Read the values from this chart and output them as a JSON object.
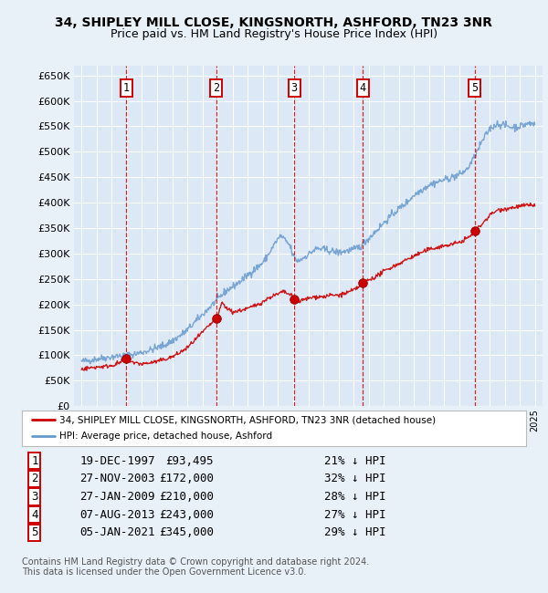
{
  "title1": "34, SHIPLEY MILL CLOSE, KINGSNORTH, ASHFORD, TN23 3NR",
  "title2": "Price paid vs. HM Land Registry's House Price Index (HPI)",
  "ylim": [
    0,
    670000
  ],
  "yticks": [
    0,
    50000,
    100000,
    150000,
    200000,
    250000,
    300000,
    350000,
    400000,
    450000,
    500000,
    550000,
    600000,
    650000
  ],
  "ytick_labels": [
    "£0",
    "£50K",
    "£100K",
    "£150K",
    "£200K",
    "£250K",
    "£300K",
    "£350K",
    "£400K",
    "£450K",
    "£500K",
    "£550K",
    "£600K",
    "£650K"
  ],
  "xlim_start": 1994.5,
  "xlim_end": 2025.5,
  "transactions": [
    {
      "num": 1,
      "date": "19-DEC-1997",
      "year": 1997.97,
      "price": 93495,
      "pct": "21%"
    },
    {
      "num": 2,
      "date": "27-NOV-2003",
      "year": 2003.9,
      "price": 172000,
      "pct": "32%"
    },
    {
      "num": 3,
      "date": "27-JAN-2009",
      "year": 2009.07,
      "price": 210000,
      "pct": "28%"
    },
    {
      "num": 4,
      "date": "07-AUG-2013",
      "year": 2013.6,
      "price": 243000,
      "pct": "27%"
    },
    {
      "num": 5,
      "date": "05-JAN-2021",
      "year": 2021.02,
      "price": 345000,
      "pct": "29%"
    }
  ],
  "legend_label_red": "34, SHIPLEY MILL CLOSE, KINGSNORTH, ASHFORD, TN23 3NR (detached house)",
  "legend_label_blue": "HPI: Average price, detached house, Ashford",
  "footer1": "Contains HM Land Registry data © Crown copyright and database right 2024.",
  "footer2": "This data is licensed under the Open Government Licence v3.0.",
  "background_color": "#e8f0f8",
  "plot_bg_color": "#dce8f5",
  "red_color": "#cc0000",
  "blue_color": "#6699cc",
  "grid_color": "#ffffff",
  "dashed_color": "#cc0000",
  "hpi_anchors": [
    [
      1995.0,
      88000
    ],
    [
      1995.5,
      90000
    ],
    [
      1996.0,
      93000
    ],
    [
      1996.5,
      95000
    ],
    [
      1997.0,
      97000
    ],
    [
      1997.5,
      99000
    ],
    [
      1998.0,
      100000
    ],
    [
      1998.5,
      102000
    ],
    [
      1999.0,
      106000
    ],
    [
      1999.5,
      110000
    ],
    [
      2000.0,
      115000
    ],
    [
      2000.5,
      120000
    ],
    [
      2001.0,
      128000
    ],
    [
      2001.5,
      138000
    ],
    [
      2002.0,
      150000
    ],
    [
      2002.5,
      165000
    ],
    [
      2003.0,
      180000
    ],
    [
      2003.5,
      195000
    ],
    [
      2004.0,
      210000
    ],
    [
      2004.5,
      225000
    ],
    [
      2005.0,
      235000
    ],
    [
      2005.5,
      245000
    ],
    [
      2006.0,
      258000
    ],
    [
      2006.5,
      270000
    ],
    [
      2007.0,
      282000
    ],
    [
      2007.3,
      295000
    ],
    [
      2007.6,
      310000
    ],
    [
      2007.9,
      325000
    ],
    [
      2008.2,
      335000
    ],
    [
      2008.5,
      325000
    ],
    [
      2008.8,
      315000
    ],
    [
      2009.0,
      295000
    ],
    [
      2009.3,
      285000
    ],
    [
      2009.6,
      290000
    ],
    [
      2010.0,
      298000
    ],
    [
      2010.3,
      305000
    ],
    [
      2010.6,
      310000
    ],
    [
      2011.0,
      308000
    ],
    [
      2011.5,
      305000
    ],
    [
      2012.0,
      302000
    ],
    [
      2012.5,
      305000
    ],
    [
      2013.0,
      308000
    ],
    [
      2013.5,
      315000
    ],
    [
      2014.0,
      330000
    ],
    [
      2014.5,
      345000
    ],
    [
      2015.0,
      360000
    ],
    [
      2015.5,
      375000
    ],
    [
      2016.0,
      388000
    ],
    [
      2016.5,
      400000
    ],
    [
      2017.0,
      415000
    ],
    [
      2017.5,
      425000
    ],
    [
      2018.0,
      435000
    ],
    [
      2018.5,
      440000
    ],
    [
      2019.0,
      445000
    ],
    [
      2019.5,
      450000
    ],
    [
      2020.0,
      455000
    ],
    [
      2020.5,
      465000
    ],
    [
      2021.0,
      490000
    ],
    [
      2021.5,
      520000
    ],
    [
      2022.0,
      545000
    ],
    [
      2022.5,
      555000
    ],
    [
      2023.0,
      552000
    ],
    [
      2023.5,
      548000
    ],
    [
      2024.0,
      550000
    ],
    [
      2024.5,
      555000
    ],
    [
      2025.0,
      555000
    ]
  ],
  "red_anchors": [
    [
      1995.0,
      73000
    ],
    [
      1995.5,
      75000
    ],
    [
      1996.0,
      77000
    ],
    [
      1996.5,
      78000
    ],
    [
      1997.0,
      80000
    ],
    [
      1997.5,
      85000
    ],
    [
      1997.97,
      93495
    ],
    [
      1998.5,
      85000
    ],
    [
      1999.0,
      83000
    ],
    [
      1999.5,
      85000
    ],
    [
      2000.0,
      88000
    ],
    [
      2000.5,
      92000
    ],
    [
      2001.0,
      97000
    ],
    [
      2001.5,
      105000
    ],
    [
      2002.0,
      115000
    ],
    [
      2002.5,
      130000
    ],
    [
      2003.0,
      145000
    ],
    [
      2003.5,
      160000
    ],
    [
      2003.9,
      172000
    ],
    [
      2004.0,
      175000
    ],
    [
      2004.3,
      205000
    ],
    [
      2004.5,
      195000
    ],
    [
      2005.0,
      185000
    ],
    [
      2005.5,
      188000
    ],
    [
      2006.0,
      192000
    ],
    [
      2006.5,
      198000
    ],
    [
      2007.0,
      205000
    ],
    [
      2007.5,
      215000
    ],
    [
      2008.0,
      220000
    ],
    [
      2008.3,
      225000
    ],
    [
      2008.6,
      222000
    ],
    [
      2009.0,
      215000
    ],
    [
      2009.07,
      210000
    ],
    [
      2009.3,
      205000
    ],
    [
      2009.6,
      208000
    ],
    [
      2010.0,
      212000
    ],
    [
      2010.5,
      215000
    ],
    [
      2011.0,
      215000
    ],
    [
      2011.5,
      218000
    ],
    [
      2012.0,
      218000
    ],
    [
      2012.5,
      222000
    ],
    [
      2013.0,
      228000
    ],
    [
      2013.5,
      238000
    ],
    [
      2013.6,
      243000
    ],
    [
      2014.0,
      248000
    ],
    [
      2014.5,
      255000
    ],
    [
      2015.0,
      265000
    ],
    [
      2015.5,
      273000
    ],
    [
      2016.0,
      280000
    ],
    [
      2016.5,
      288000
    ],
    [
      2017.0,
      295000
    ],
    [
      2017.5,
      302000
    ],
    [
      2018.0,
      308000
    ],
    [
      2018.5,
      312000
    ],
    [
      2019.0,
      315000
    ],
    [
      2019.5,
      318000
    ],
    [
      2020.0,
      322000
    ],
    [
      2020.5,
      330000
    ],
    [
      2021.0,
      340000
    ],
    [
      2021.02,
      345000
    ],
    [
      2021.5,
      358000
    ],
    [
      2022.0,
      375000
    ],
    [
      2022.5,
      385000
    ],
    [
      2023.0,
      388000
    ],
    [
      2023.5,
      390000
    ],
    [
      2024.0,
      393000
    ],
    [
      2024.5,
      395000
    ],
    [
      2025.0,
      395000
    ]
  ]
}
